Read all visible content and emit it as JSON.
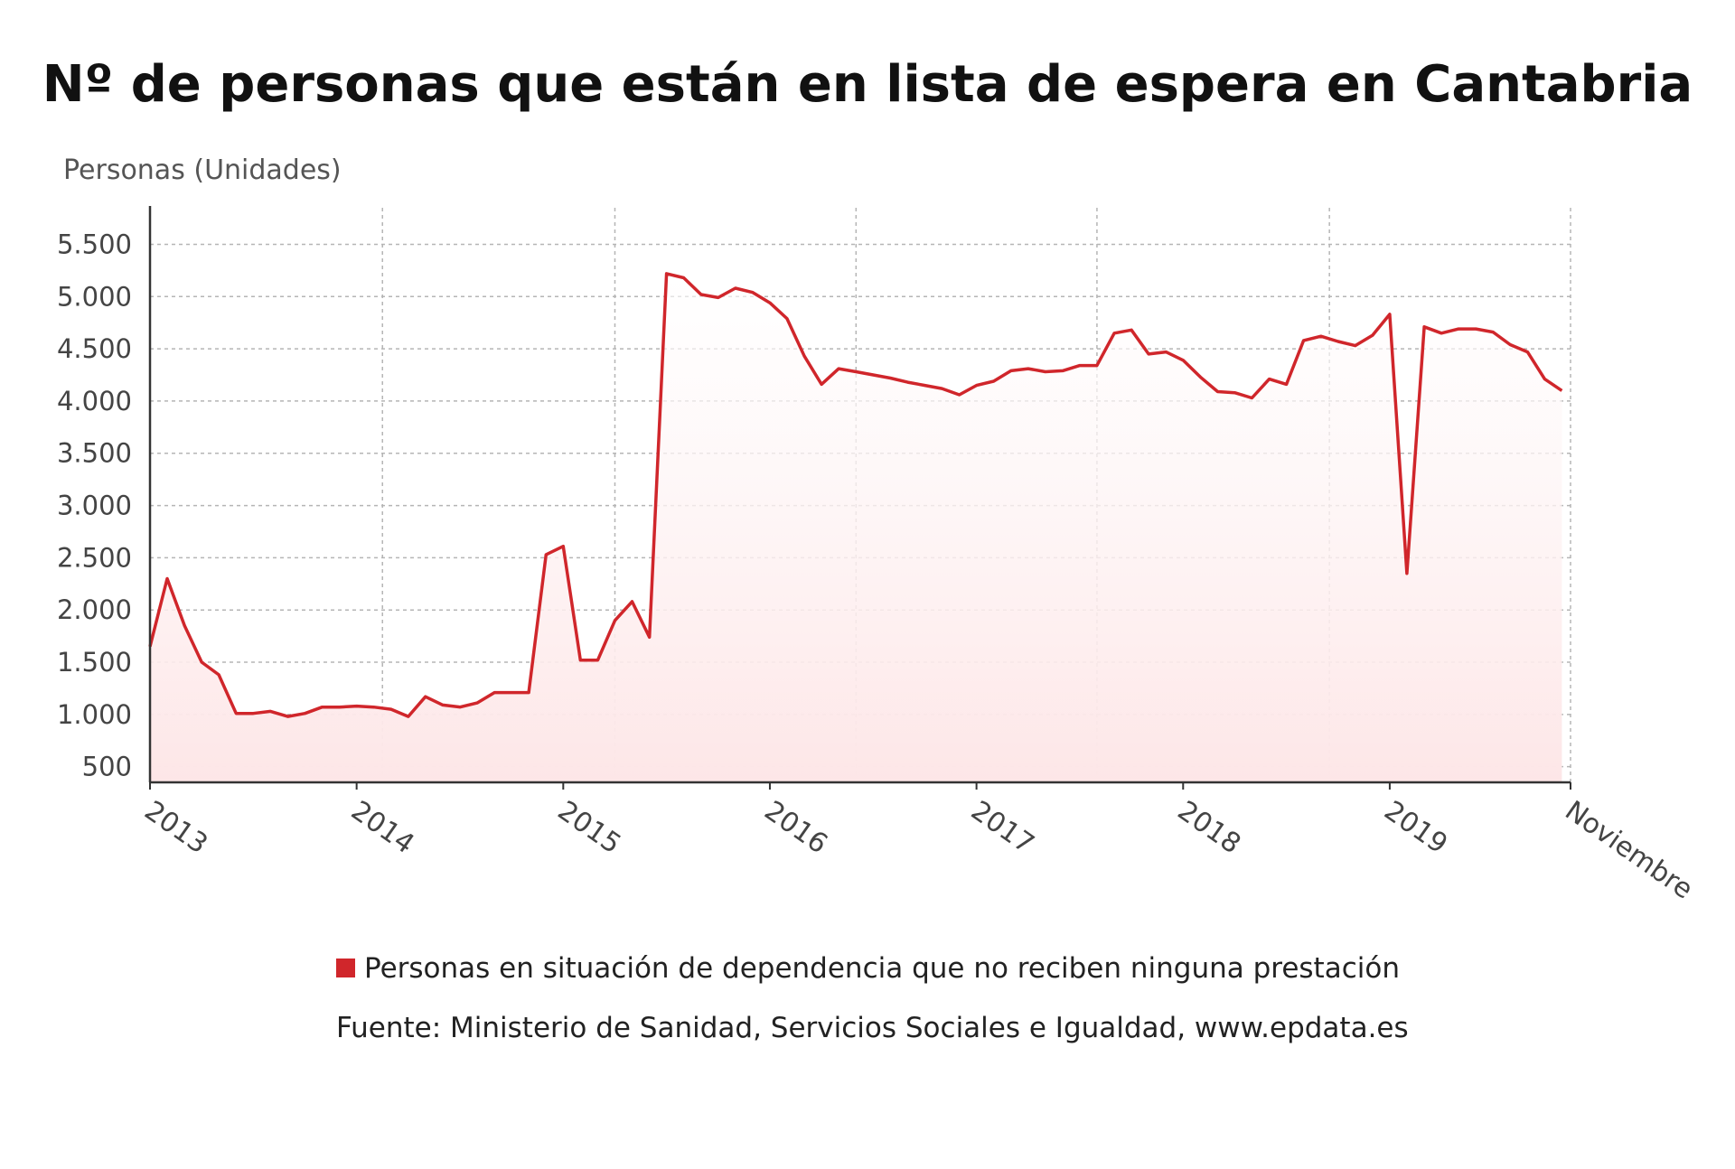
{
  "chart_data": {
    "type": "area",
    "title": "Nº de personas que están en lista de espera en Cantabria",
    "ylabel": "Personas (Unidades)",
    "xlabel": "",
    "ylim": [
      350,
      5850
    ],
    "yticks": [
      500,
      1000,
      1500,
      2000,
      2500,
      3000,
      3500,
      4000,
      4500,
      5000,
      5500
    ],
    "ytick_labels": [
      "500",
      "1.000",
      "1.500",
      "2.000",
      "2.500",
      "3.000",
      "3.500",
      "4.000",
      "4.500",
      "5.000",
      "5.500"
    ],
    "x_range": [
      2013.0,
      2019.875
    ],
    "x_ticks": [
      2013,
      2014,
      2015,
      2016,
      2017,
      2018,
      2019,
      2019.875
    ],
    "x_tick_labels": [
      "2013",
      "2014",
      "2015",
      "2016",
      "2017",
      "2018",
      "2019",
      "Noviembre"
    ],
    "vertical_gridlines": [
      2014.125,
      2015.25,
      2016.417,
      2017.583,
      2018.708,
      2019.875
    ],
    "grid": true,
    "legend_position": "bottom-center",
    "series": [
      {
        "name": "Personas en situación de dependencia que no reciben ninguna prestación",
        "color": "#d0262b",
        "fill": "#fde6e7",
        "points": [
          [
            2013.0,
            1650
          ],
          [
            2013.083,
            2300
          ],
          [
            2013.167,
            1850
          ],
          [
            2013.25,
            1500
          ],
          [
            2013.333,
            1380
          ],
          [
            2013.417,
            1010
          ],
          [
            2013.5,
            1010
          ],
          [
            2013.583,
            1030
          ],
          [
            2013.667,
            980
          ],
          [
            2013.75,
            1010
          ],
          [
            2013.833,
            1070
          ],
          [
            2013.917,
            1070
          ],
          [
            2014.0,
            1080
          ],
          [
            2014.083,
            1070
          ],
          [
            2014.167,
            1050
          ],
          [
            2014.25,
            980
          ],
          [
            2014.333,
            1170
          ],
          [
            2014.417,
            1090
          ],
          [
            2014.5,
            1070
          ],
          [
            2014.583,
            1110
          ],
          [
            2014.667,
            1210
          ],
          [
            2014.75,
            1210
          ],
          [
            2014.833,
            1210
          ],
          [
            2014.917,
            2530
          ],
          [
            2015.0,
            2610
          ],
          [
            2015.083,
            1520
          ],
          [
            2015.167,
            1520
          ],
          [
            2015.25,
            1900
          ],
          [
            2015.333,
            2080
          ],
          [
            2015.417,
            1740
          ],
          [
            2015.5,
            5220
          ],
          [
            2015.583,
            5180
          ],
          [
            2015.667,
            5020
          ],
          [
            2015.75,
            4990
          ],
          [
            2015.833,
            5080
          ],
          [
            2015.917,
            5040
          ],
          [
            2016.0,
            4940
          ],
          [
            2016.083,
            4790
          ],
          [
            2016.167,
            4430
          ],
          [
            2016.25,
            4160
          ],
          [
            2016.333,
            4310
          ],
          [
            2016.417,
            4280
          ],
          [
            2016.5,
            4250
          ],
          [
            2016.583,
            4220
          ],
          [
            2016.667,
            4180
          ],
          [
            2016.75,
            4150
          ],
          [
            2016.833,
            4120
          ],
          [
            2016.917,
            4060
          ],
          [
            2017.0,
            4150
          ],
          [
            2017.083,
            4190
          ],
          [
            2017.167,
            4290
          ],
          [
            2017.25,
            4310
          ],
          [
            2017.333,
            4280
          ],
          [
            2017.417,
            4290
          ],
          [
            2017.5,
            4340
          ],
          [
            2017.583,
            4340
          ],
          [
            2017.667,
            4650
          ],
          [
            2017.75,
            4680
          ],
          [
            2017.833,
            4450
          ],
          [
            2017.917,
            4470
          ],
          [
            2018.0,
            4390
          ],
          [
            2018.083,
            4230
          ],
          [
            2018.167,
            4090
          ],
          [
            2018.25,
            4080
          ],
          [
            2018.333,
            4030
          ],
          [
            2018.417,
            4210
          ],
          [
            2018.5,
            4160
          ],
          [
            2018.583,
            4580
          ],
          [
            2018.667,
            4620
          ],
          [
            2018.75,
            4570
          ],
          [
            2018.833,
            4530
          ],
          [
            2018.917,
            4630
          ],
          [
            2019.0,
            4830
          ],
          [
            2019.083,
            2350
          ],
          [
            2019.167,
            4710
          ],
          [
            2019.25,
            4650
          ],
          [
            2019.333,
            4690
          ],
          [
            2019.417,
            4690
          ],
          [
            2019.5,
            4660
          ],
          [
            2019.583,
            4540
          ],
          [
            2019.667,
            4470
          ],
          [
            2019.75,
            4210
          ],
          [
            2019.833,
            4100
          ]
        ]
      }
    ],
    "legend_entry": "Personas en situación de dependencia que no reciben ninguna prestación",
    "source": "Fuente: Ministerio de Sanidad, Servicios Sociales e Igualdad, www.epdata.es"
  }
}
